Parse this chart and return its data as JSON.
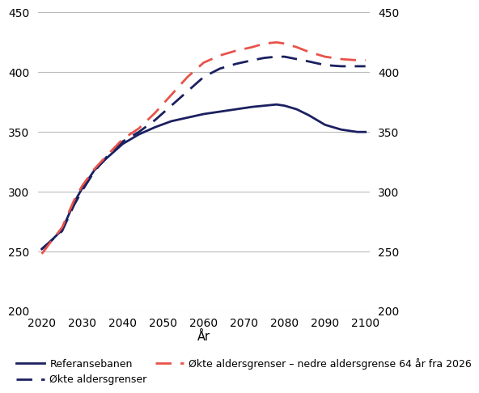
{
  "years": [
    2020,
    2022,
    2025,
    2028,
    2030,
    2033,
    2036,
    2040,
    2044,
    2048,
    2052,
    2056,
    2060,
    2064,
    2068,
    2072,
    2075,
    2078,
    2080,
    2083,
    2086,
    2090,
    2094,
    2098,
    2100
  ],
  "referansebanen": [
    252,
    258,
    268,
    291,
    303,
    318,
    328,
    340,
    348,
    354,
    359,
    362,
    365,
    367,
    369,
    371,
    372,
    373,
    372,
    369,
    364,
    356,
    352,
    350,
    350
  ],
  "okte_aldersgrenser": [
    252,
    258,
    267,
    289,
    301,
    317,
    329,
    342,
    350,
    360,
    372,
    384,
    396,
    403,
    407,
    410,
    412,
    413,
    413,
    411,
    409,
    406,
    405,
    405,
    405
  ],
  "okte_aldersgrenser_64": [
    248,
    257,
    270,
    293,
    305,
    319,
    330,
    344,
    353,
    366,
    381,
    396,
    408,
    414,
    418,
    421,
    424,
    425,
    424,
    421,
    417,
    413,
    411,
    410,
    410
  ],
  "ref_color": "#1a2060",
  "okte_color": "#1a2060",
  "okte64_color": "#e8534b",
  "ylim": [
    200,
    450
  ],
  "yticks": [
    200,
    250,
    300,
    350,
    400,
    450
  ],
  "xticks": [
    2020,
    2030,
    2040,
    2050,
    2060,
    2070,
    2080,
    2090,
    2100
  ],
  "xlabel": "År",
  "legend": {
    "ref_label": "Referansebanen",
    "okte_label": "Økte aldersgrenser",
    "okte64_label": "Økte aldersgrenser – nedre aldersgrense 64 år fra 2026"
  }
}
